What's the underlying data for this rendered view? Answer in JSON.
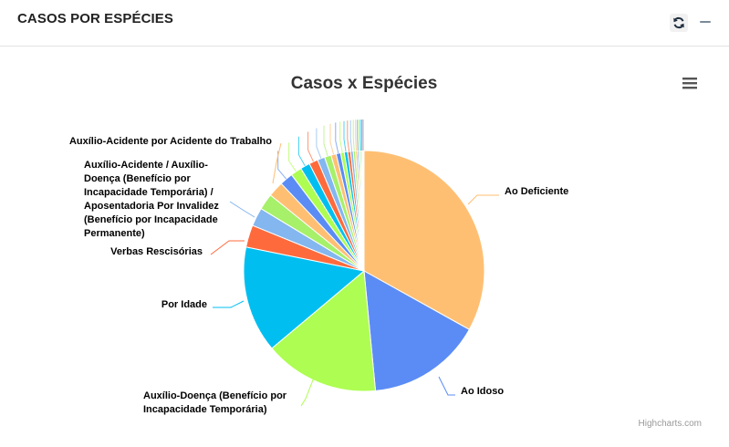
{
  "header": {
    "title": "CASOS POR ESPÉCIES",
    "refresh_icon": "refresh-icon",
    "minimize_icon": "minimize-icon"
  },
  "chart_data": {
    "type": "pie",
    "title": "Casos x Espécies",
    "credits": "Highcharts.com",
    "menu_icon": "hamburger-menu-icon",
    "slices": [
      {
        "label": "Ao Deficiente",
        "value": 33.3,
        "color": "#ffbf73"
      },
      {
        "label": "Ao Idoso",
        "value": 15.5,
        "color": "#5b8cf5"
      },
      {
        "label": "Auxílio-Doença (Benefício por Incapacidade Temporária)",
        "value": 15.5,
        "color": "#aefd52"
      },
      {
        "label": "Por Idade",
        "value": 14.4,
        "color": "#00bff0"
      },
      {
        "label": "Verbas Rescisórias",
        "value": 3.0,
        "color": "#ff6a3c"
      },
      {
        "label": "Auxílio-Acidente / Auxílio-Doença (Benefício por Incapacidade Temporária) / Aposentadoria Por Invalidez (Benefício por Incapacidade Permanente)",
        "value": 2.5,
        "color": "#84b6ef"
      },
      {
        "label": "",
        "value": 2.2,
        "color": "#a6f06a"
      },
      {
        "label": "Auxílio-Acidente por Acidente do Trabalho",
        "value": 2.1,
        "color": "#ffbf73"
      },
      {
        "label": "",
        "value": 1.8,
        "color": "#5b8cf5"
      },
      {
        "label": "",
        "value": 1.5,
        "color": "#aefd52"
      },
      {
        "label": "",
        "value": 1.3,
        "color": "#00bff0"
      },
      {
        "label": "",
        "value": 1.2,
        "color": "#ff6a3c"
      },
      {
        "label": "",
        "value": 1.0,
        "color": "#84b6ef"
      },
      {
        "label": "",
        "value": 0.9,
        "color": "#a6f06a"
      },
      {
        "label": "",
        "value": 0.7,
        "color": "#ffbf73"
      },
      {
        "label": "",
        "value": 0.6,
        "color": "#5b8cf5"
      },
      {
        "label": "",
        "value": 0.5,
        "color": "#aefd52"
      },
      {
        "label": "",
        "value": 0.45,
        "color": "#00bff0"
      },
      {
        "label": "",
        "value": 0.4,
        "color": "#ff6a3c"
      },
      {
        "label": "",
        "value": 0.35,
        "color": "#84b6ef"
      },
      {
        "label": "",
        "value": 0.3,
        "color": "#a6f06a"
      },
      {
        "label": "",
        "value": 0.25,
        "color": "#ffbf73"
      },
      {
        "label": "",
        "value": 0.2,
        "color": "#5b8cf5"
      },
      {
        "label": "",
        "value": 0.2,
        "color": "#aefd52"
      },
      {
        "label": "",
        "value": 0.15,
        "color": "#00bff0"
      },
      {
        "label": "",
        "value": 0.15,
        "color": "#ff6a3c"
      },
      {
        "label": "",
        "value": 0.1,
        "color": "#84b6ef"
      },
      {
        "label": "",
        "value": 0.1,
        "color": "#a6f06a"
      }
    ]
  }
}
